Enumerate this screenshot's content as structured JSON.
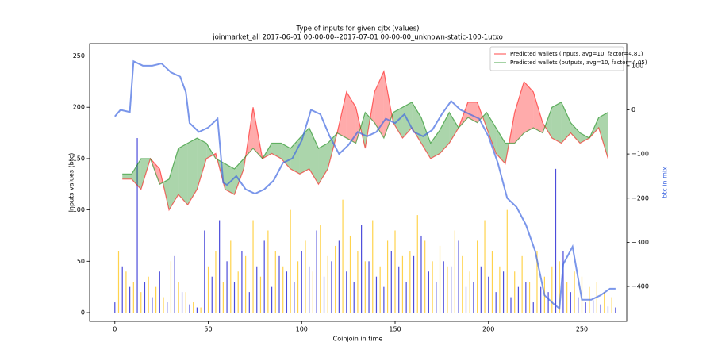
{
  "chart_data": {
    "type": "line",
    "title": "Type of inputs for given cjtx (values)",
    "subtitle": "joinmarket_all 2017-06-01 00-00-00--2017-07-01 00-00-00_unknown-static-100-1utxo",
    "x_label": "Coinjoin in time",
    "y_label": "Inputs values (btc)",
    "y2_label": "btc in mix",
    "xlim": [
      -13.5,
      274
    ],
    "ylim": [
      -8.5,
      262
    ],
    "y2lim": [
      -479,
      150
    ],
    "xticks": [
      0,
      50,
      100,
      150,
      200,
      250
    ],
    "yticks": [
      0,
      50,
      100,
      150,
      200,
      250
    ],
    "y2ticks": [
      {
        "value": -400,
        "label": "−400"
      },
      {
        "value": -300,
        "label": "−300"
      },
      {
        "value": -200,
        "label": "−200"
      },
      {
        "value": -100,
        "label": "−100"
      },
      0,
      100
    ],
    "y2_color": "#4169e1",
    "legend": "upper right",
    "fill_between": [
      0,
      1
    ],
    "series": [
      {
        "name": "Predicted wallets (inputs, avg=10, factor=4.81)",
        "color": "#ff0000",
        "x": [
          4,
          9,
          14,
          19,
          24,
          29,
          34,
          39,
          44,
          49,
          54,
          59,
          64,
          69,
          74,
          79,
          84,
          89,
          94,
          99,
          104,
          109,
          114,
          119,
          124,
          129,
          134,
          139,
          144,
          149,
          154,
          159,
          164,
          169,
          174,
          179,
          184,
          189,
          194,
          199,
          204,
          209,
          214,
          219,
          224,
          229,
          234,
          239,
          244,
          249,
          254,
          259,
          264
        ],
        "values": [
          130,
          130,
          120,
          150,
          140,
          100,
          115,
          105,
          120,
          150,
          155,
          120,
          115,
          140,
          200,
          150,
          155,
          150,
          140,
          135,
          140,
          125,
          140,
          175,
          215,
          200,
          160,
          215,
          235,
          185,
          170,
          180,
          165,
          150,
          155,
          165,
          180,
          205,
          205,
          180,
          155,
          145,
          195,
          225,
          215,
          185,
          170,
          165,
          175,
          165,
          170,
          180,
          150
        ]
      },
      {
        "name": "Predicted wallets (outputs, avg=10, factor=4.05)",
        "color": "#008000",
        "x": [
          4,
          9,
          14,
          19,
          24,
          29,
          34,
          39,
          44,
          49,
          54,
          59,
          64,
          69,
          74,
          79,
          84,
          89,
          94,
          99,
          104,
          109,
          114,
          119,
          124,
          129,
          134,
          139,
          144,
          149,
          154,
          159,
          164,
          169,
          174,
          179,
          184,
          189,
          194,
          199,
          204,
          209,
          214,
          219,
          224,
          229,
          234,
          239,
          244,
          249,
          254,
          259,
          264
        ],
        "values": [
          135,
          135,
          150,
          150,
          125,
          130,
          160,
          165,
          170,
          165,
          150,
          145,
          140,
          150,
          160,
          150,
          165,
          165,
          160,
          170,
          180,
          160,
          165,
          175,
          170,
          165,
          195,
          185,
          170,
          195,
          200,
          205,
          190,
          165,
          178,
          195,
          180,
          190,
          185,
          195,
          180,
          165,
          165,
          175,
          180,
          175,
          200,
          205,
          185,
          175,
          170,
          190,
          195
        ]
      },
      {
        "color": "#4169e1",
        "axis": "y2",
        "x": [
          0,
          3,
          8,
          10,
          15,
          20,
          25,
          30,
          35,
          38,
          40,
          45,
          50,
          55,
          58,
          60,
          65,
          70,
          75,
          80,
          85,
          90,
          95,
          100,
          105,
          110,
          115,
          120,
          125,
          130,
          135,
          140,
          145,
          150,
          155,
          160,
          165,
          170,
          175,
          180,
          185,
          190,
          195,
          200,
          205,
          210,
          215,
          220,
          225,
          230,
          235,
          238,
          240,
          245,
          250,
          255,
          260,
          265,
          268
        ],
        "values": [
          -15,
          0,
          -5,
          110,
          100,
          100,
          105,
          85,
          75,
          40,
          -30,
          -50,
          -40,
          -20,
          -165,
          -170,
          -150,
          -180,
          -190,
          -180,
          -160,
          -120,
          -110,
          -70,
          0,
          -10,
          -60,
          -100,
          -80,
          -50,
          -60,
          -50,
          -20,
          -30,
          -10,
          -50,
          -60,
          -45,
          -10,
          20,
          0,
          -10,
          -20,
          -60,
          -120,
          -200,
          -220,
          -260,
          -320,
          -420,
          -440,
          -450,
          -350,
          -310,
          -430,
          -430,
          -420,
          -405,
          -405
        ]
      },
      {
        "type": "bar",
        "color": "#0000cc",
        "x": [
          0,
          4,
          8,
          12,
          16,
          20,
          24,
          28,
          32,
          36,
          40,
          44,
          48,
          52,
          56,
          60,
          64,
          68,
          72,
          76,
          80,
          84,
          88,
          92,
          96,
          100,
          104,
          108,
          112,
          116,
          120,
          124,
          128,
          132,
          136,
          140,
          144,
          148,
          152,
          156,
          160,
          164,
          168,
          172,
          176,
          180,
          184,
          188,
          192,
          196,
          200,
          204,
          208,
          212,
          216,
          220,
          224,
          228,
          232,
          236,
          240,
          244,
          248,
          252,
          256,
          260,
          264,
          268
        ],
        "values": [
          10,
          45,
          25,
          170,
          30,
          15,
          40,
          10,
          55,
          20,
          8,
          5,
          80,
          35,
          90,
          50,
          30,
          60,
          20,
          45,
          70,
          25,
          55,
          40,
          30,
          60,
          45,
          80,
          35,
          50,
          70,
          40,
          30,
          85,
          50,
          35,
          25,
          60,
          45,
          30,
          55,
          75,
          40,
          30,
          50,
          45,
          70,
          25,
          30,
          45,
          35,
          20,
          40,
          15,
          25,
          30,
          10,
          25,
          20,
          140,
          60,
          20,
          15,
          10,
          12,
          8,
          6,
          5
        ]
      },
      {
        "type": "bar",
        "color": "#ffc000",
        "x": [
          2,
          6,
          10,
          14,
          18,
          22,
          26,
          30,
          34,
          38,
          42,
          46,
          50,
          54,
          58,
          62,
          66,
          70,
          74,
          78,
          82,
          86,
          90,
          94,
          98,
          102,
          106,
          110,
          114,
          118,
          122,
          126,
          130,
          134,
          138,
          142,
          146,
          150,
          154,
          158,
          162,
          166,
          170,
          174,
          178,
          182,
          186,
          190,
          194,
          198,
          202,
          206,
          210,
          214,
          218,
          222,
          226,
          230,
          234,
          238,
          242,
          246,
          250,
          254,
          258,
          262,
          266
        ],
        "values": [
          60,
          40,
          30,
          20,
          35,
          25,
          15,
          50,
          30,
          20,
          10,
          5,
          45,
          60,
          30,
          70,
          40,
          55,
          90,
          35,
          80,
          60,
          45,
          100,
          50,
          70,
          40,
          85,
          55,
          65,
          110,
          75,
          60,
          50,
          90,
          45,
          70,
          80,
          55,
          60,
          95,
          70,
          50,
          65,
          45,
          80,
          55,
          40,
          70,
          90,
          60,
          45,
          100,
          40,
          55,
          30,
          60,
          35,
          45,
          50,
          30,
          40,
          35,
          25,
          30,
          20,
          15
        ]
      }
    ]
  }
}
